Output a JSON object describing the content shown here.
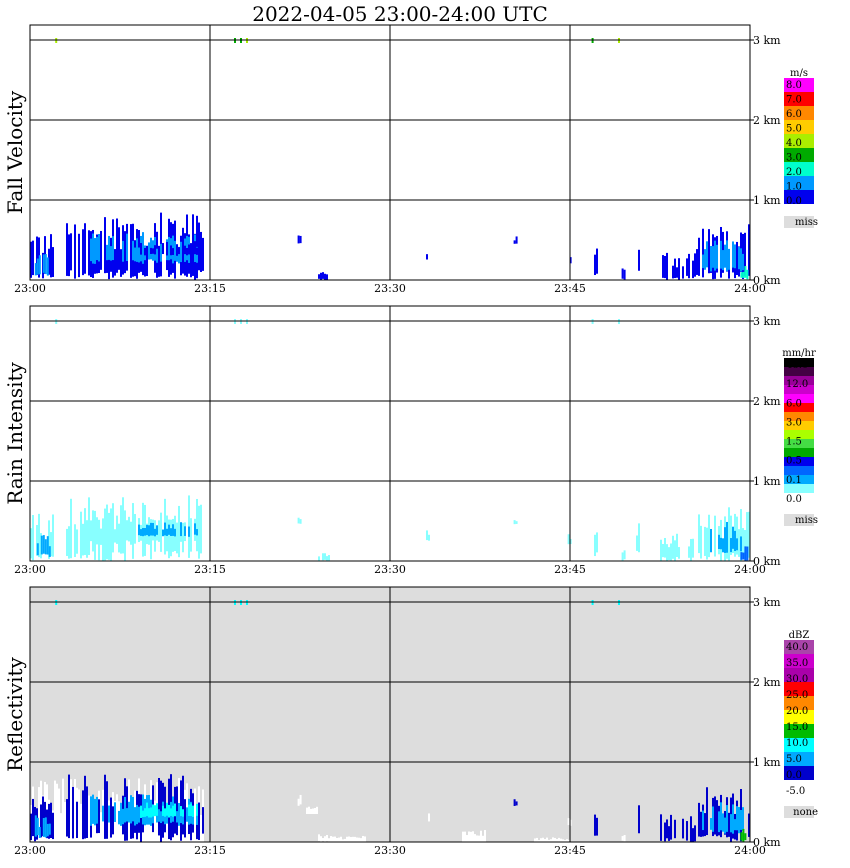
{
  "chart_data": {
    "type": "heatmap",
    "title": "2022-04-05   23:00-24:00 UTC",
    "x_ticks": [
      "23:00",
      "23:15",
      "23:30",
      "23:45",
      "24:00"
    ],
    "y_ticks": [
      "3 km",
      "2 km",
      "1 km",
      "0 km"
    ],
    "xlim": [
      "23:00",
      "24:00"
    ],
    "ylim_km": [
      0,
      3.5
    ],
    "grid": true,
    "panels": [
      {
        "name": "Fall Velocity",
        "unit": "m/s",
        "background": "#ffffff",
        "legend_labels": [
          "8.0",
          "7.0",
          "6.0",
          "5.0",
          "4.0",
          "3.0",
          "2.0",
          "1.0",
          "0.0"
        ],
        "legend_colors": [
          "#ff00ff",
          "#ff0000",
          "#ff8800",
          "#ffcc00",
          "#aaee00",
          "#00aa00",
          "#00ffcc",
          "#0099ff",
          "#0000ee"
        ],
        "missing_label": "miss",
        "missing_color": "#dddddd"
      },
      {
        "name": "Rain Intensity",
        "unit": "mm/hr",
        "background": "#ffffff",
        "legend_labels": [
          "48.0",
          "12.0",
          "6.0",
          "3.0",
          "1.5",
          "0.5",
          "0.1",
          "0.0"
        ],
        "legend_colors": [
          "#000000",
          "#440044",
          "#990099",
          "#cc00cc",
          "#ff00ff",
          "#ff0000",
          "#ff8800",
          "#ffcc00",
          "#aaff00",
          "#44dd44",
          "#00aa00",
          "#0000ee",
          "#0066ff",
          "#00aaff",
          "#88ffff",
          "#ffffff"
        ],
        "missing_label": "miss",
        "missing_color": "#dddddd"
      },
      {
        "name": "Reflectivity",
        "unit": "dBZ",
        "background": "#dddddd",
        "legend_labels": [
          "40.0",
          "35.0",
          "30.0",
          "25.0",
          "20.0",
          "15.0",
          "10.0",
          "5.0",
          "0.0",
          "-5.0"
        ],
        "legend_colors": [
          "#aa44aa",
          "#cc00cc",
          "#aa00aa",
          "#ff0000",
          "#ff8800",
          "#ffff00",
          "#00bb00",
          "#00ffff",
          "#00aaff",
          "#0000cc",
          "#ffffff"
        ],
        "missing_label": "none",
        "missing_color": "#dddddd"
      }
    ],
    "echo_regions": [
      {
        "t0": 0.0,
        "t1": 2.0,
        "z0": 0.0,
        "z1": 0.6,
        "vel": "#0000ee",
        "rain": "#88ffff",
        "dbz": "#0000cc"
      },
      {
        "t0": 0.4,
        "t1": 1.6,
        "z0": 0.05,
        "z1": 0.35,
        "vel": "#0099ff",
        "rain": "#00aaff",
        "dbz": "#00aaff"
      },
      {
        "t0": 3.0,
        "t1": 14.5,
        "z0": 0.0,
        "z1": 0.85,
        "vel": "#0000ee",
        "rain": "#88ffff",
        "dbz": "#0000cc"
      },
      {
        "t0": 5.0,
        "t1": 14.0,
        "z0": 0.2,
        "z1": 0.6,
        "vel": "#0099ff",
        "rain": "#88ffff",
        "dbz": "#00aaff"
      },
      {
        "t0": 9.0,
        "t1": 14.0,
        "z0": 0.3,
        "z1": 0.5,
        "vel": "#0000ee",
        "rain": "#00aaff",
        "dbz": "#00ffff"
      },
      {
        "t0": 22.3,
        "t1": 22.5,
        "z0": 0.45,
        "z1": 0.6,
        "vel": "#0000ee",
        "rain": "#88ffff",
        "dbz": "#ffffff"
      },
      {
        "t0": 24.0,
        "t1": 25.0,
        "z0": 0.0,
        "z1": 0.1,
        "vel": "#0000ee",
        "rain": "#88ffff",
        "dbz": "#ffffff"
      },
      {
        "t0": 33.0,
        "t1": 33.2,
        "z0": 0.25,
        "z1": 0.4,
        "vel": "#0000ee",
        "rain": "#88ffff",
        "dbz": "#ffffff"
      },
      {
        "t0": 40.3,
        "t1": 40.5,
        "z0": 0.45,
        "z1": 0.55,
        "vel": "#0000ee",
        "rain": "#88ffff",
        "dbz": "#0000cc"
      },
      {
        "t0": 44.8,
        "t1": 45.0,
        "z0": 0.2,
        "z1": 0.35,
        "vel": "#0000ee",
        "rain": "#88ffff",
        "dbz": "#ffffff"
      },
      {
        "t0": 47.0,
        "t1": 47.3,
        "z0": 0.05,
        "z1": 0.45,
        "vel": "#0000ee",
        "rain": "#88ffff",
        "dbz": "#0000cc"
      },
      {
        "t0": 49.3,
        "t1": 49.5,
        "z0": 0.0,
        "z1": 0.15,
        "vel": "#0000ee",
        "rain": "#88ffff",
        "dbz": "#ffffff"
      },
      {
        "t0": 50.5,
        "t1": 50.8,
        "z0": 0.1,
        "z1": 0.5,
        "vel": "#0000ee",
        "rain": "#88ffff",
        "dbz": "#0000cc"
      },
      {
        "t0": 52.5,
        "t1": 55.5,
        "z0": 0.0,
        "z1": 0.35,
        "vel": "#0000ee",
        "rain": "#88ffff",
        "dbz": "#0000cc"
      },
      {
        "t0": 55.5,
        "t1": 60.0,
        "z0": 0.0,
        "z1": 0.7,
        "vel": "#0000ee",
        "rain": "#88ffff",
        "dbz": "#0000cc"
      },
      {
        "t0": 56.0,
        "t1": 59.5,
        "z0": 0.1,
        "z1": 0.5,
        "vel": "#0099ff",
        "rain": "#00aaff",
        "dbz": "#00aaff"
      },
      {
        "t0": 59.2,
        "t1": 59.8,
        "z0": 0.0,
        "z1": 0.2,
        "vel": "#00ffcc",
        "rain": "#0066ff",
        "dbz": "#00bb00"
      }
    ],
    "upper_echoes": [
      {
        "t": 2.1,
        "vel": "#aaee00",
        "rain": "#88ffff",
        "dbz": "#00ffff"
      },
      {
        "t": 17.0,
        "vel": "#00aa00",
        "rain": "#88ffff",
        "dbz": "#00ffff"
      },
      {
        "t": 17.5,
        "vel": "#00aa00",
        "rain": "#88ffff",
        "dbz": "#00ffff"
      },
      {
        "t": 18.0,
        "vel": "#aaee00",
        "rain": "#88ffff",
        "dbz": "#00ffff"
      },
      {
        "t": 46.8,
        "vel": "#00aa00",
        "rain": "#88ffff",
        "dbz": "#00ffff"
      },
      {
        "t": 49.0,
        "vel": "#aaee00",
        "rain": "#88ffff",
        "dbz": "#00ffff"
      }
    ],
    "clutter_regions": [
      {
        "t0": 0.0,
        "t1": 14.5,
        "z0": 0.0,
        "z1": 0.8
      },
      {
        "t0": 23.0,
        "t1": 24.0,
        "z0": 0.35,
        "z1": 0.45
      },
      {
        "t0": 25.0,
        "t1": 28.0,
        "z0": 0.0,
        "z1": 0.08
      },
      {
        "t0": 36.0,
        "t1": 38.0,
        "z0": 0.0,
        "z1": 0.15
      },
      {
        "t0": 42.0,
        "t1": 45.0,
        "z0": 0.0,
        "z1": 0.06
      }
    ]
  }
}
